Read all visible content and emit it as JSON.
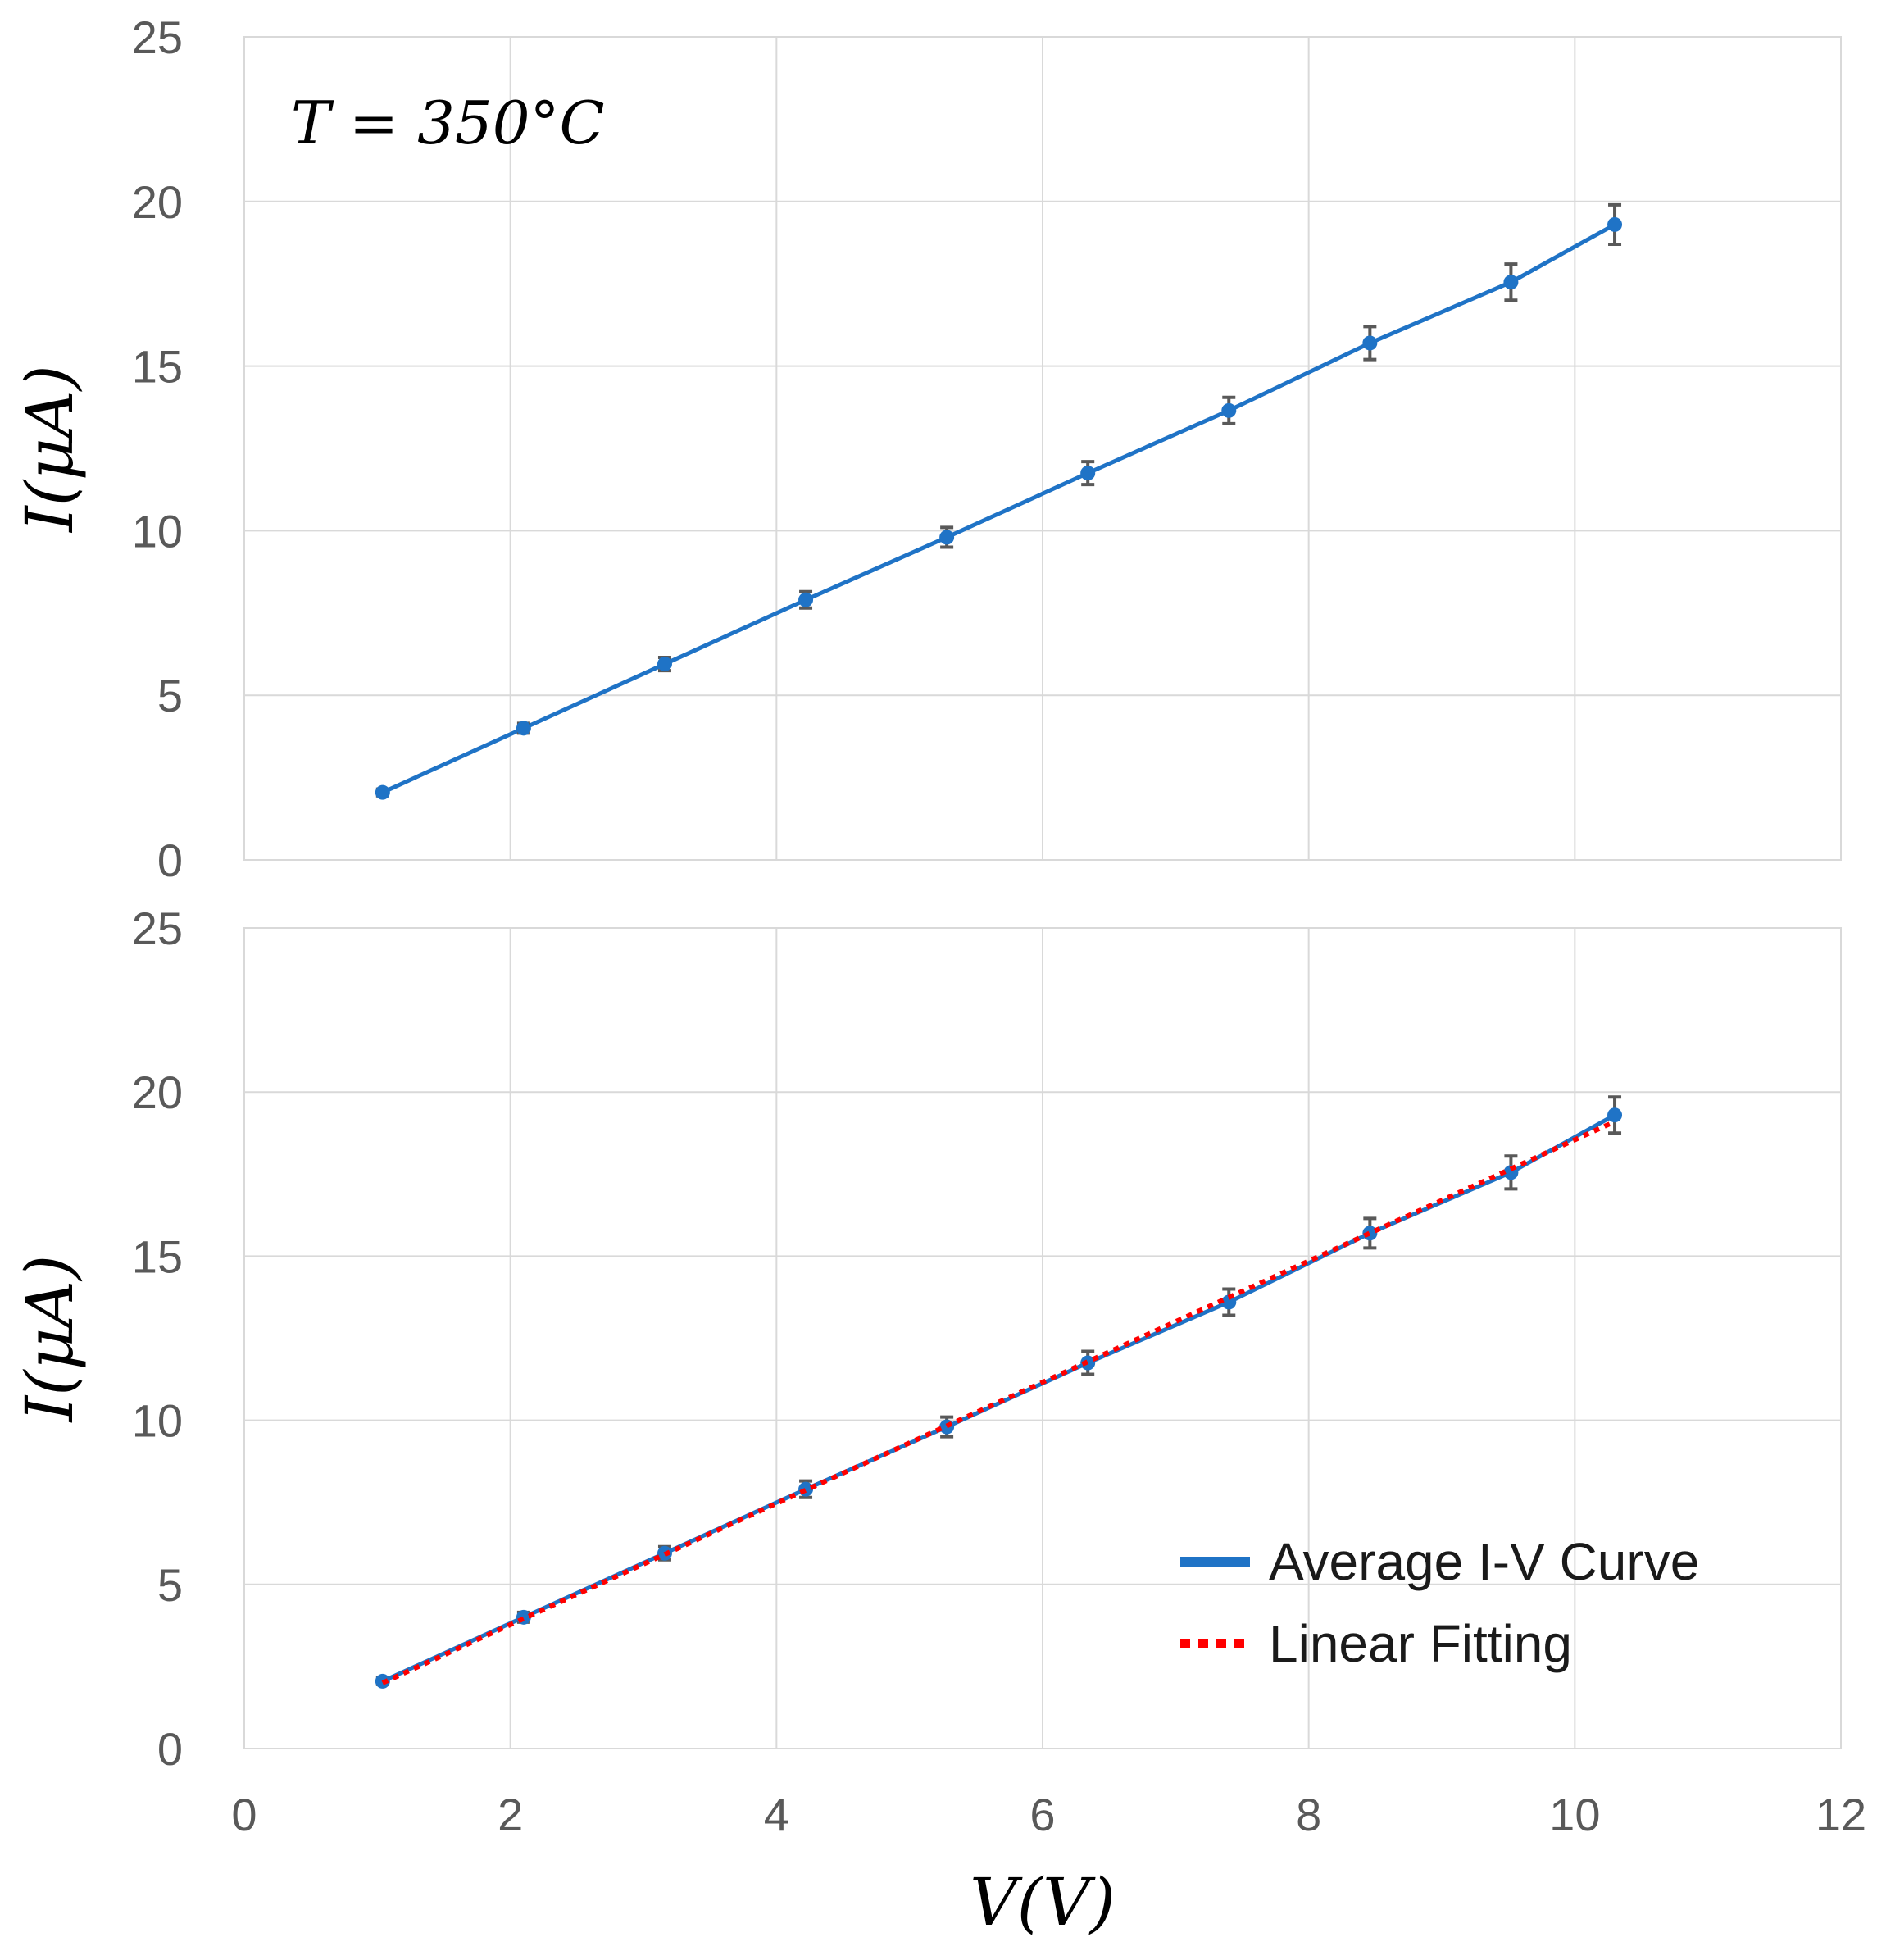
{
  "chart_data": [
    {
      "type": "line",
      "panel": "top",
      "annotation": "T = 350°C",
      "ylabel": "I(μA)",
      "xlabel": "",
      "xlim": [
        0,
        12
      ],
      "ylim": [
        0,
        25
      ],
      "xticks": [],
      "yticks": [
        "0",
        "5",
        "10",
        "15",
        "20",
        "25"
      ],
      "grid": true,
      "series": [
        {
          "name": "Average I-V Curve",
          "color": "#1f73c6",
          "style": "solid",
          "x": [
            1.04,
            2.1,
            3.16,
            4.22,
            5.28,
            6.34,
            7.4,
            8.46,
            9.52,
            10.3
          ],
          "y": [
            2.05,
            4.0,
            5.95,
            7.9,
            9.8,
            11.75,
            13.65,
            15.7,
            17.55,
            19.3
          ],
          "error": [
            0.1,
            0.15,
            0.2,
            0.25,
            0.3,
            0.35,
            0.4,
            0.5,
            0.55,
            0.6
          ]
        }
      ]
    },
    {
      "type": "line",
      "panel": "bottom",
      "ylabel": "I(μA)",
      "xlabel": "V(V)",
      "xlim": [
        0,
        12
      ],
      "ylim": [
        0,
        25
      ],
      "xticks": [
        "0",
        "2",
        "4",
        "6",
        "8",
        "10",
        "12"
      ],
      "yticks": [
        "0",
        "5",
        "10",
        "15",
        "20",
        "25"
      ],
      "grid": true,
      "legend_position": "bottom-right",
      "series": [
        {
          "name": "Average I-V Curve",
          "color": "#1f73c6",
          "style": "solid",
          "x": [
            1.04,
            2.1,
            3.16,
            4.22,
            5.28,
            6.34,
            7.4,
            8.46,
            9.52,
            10.3
          ],
          "y": [
            2.05,
            4.0,
            5.95,
            7.9,
            9.8,
            11.75,
            13.6,
            15.7,
            17.55,
            19.3
          ],
          "error": [
            0.1,
            0.15,
            0.2,
            0.25,
            0.3,
            0.35,
            0.4,
            0.45,
            0.5,
            0.55
          ]
        },
        {
          "name": "Linear Fitting",
          "color": "#ff0000",
          "style": "dotted",
          "x": [
            1.04,
            10.3
          ],
          "y": [
            2.0,
            19.1
          ]
        }
      ]
    }
  ]
}
